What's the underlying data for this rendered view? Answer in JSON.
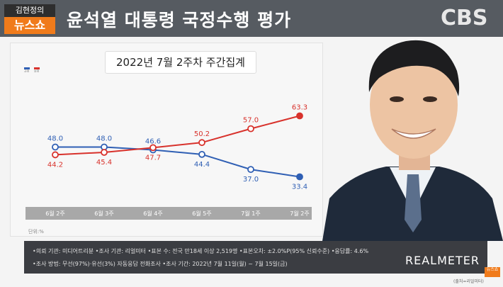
{
  "header": {
    "show_logo_top": "김현정의",
    "show_logo_bottom": "뉴스쇼",
    "title": "윤석열 대통령 국정수행 평가",
    "broadcaster": "CBS"
  },
  "subtitle": "2022년 7월 2주차 주간집계",
  "colors": {
    "positive": "#2f5fb4",
    "negative": "#d8322c",
    "axis_band": "#a8a8a8"
  },
  "chart_data": {
    "type": "line",
    "categories": [
      "6월 2주",
      "6월 3주",
      "6월 4주",
      "6월 5주",
      "7월 1주",
      "7월 2주"
    ],
    "series": [
      {
        "name": "긍정",
        "color": "#2f5fb4",
        "values": [
          48.0,
          48.0,
          46.6,
          44.4,
          37.0,
          33.4
        ],
        "labels": [
          "48.0",
          "48.0",
          "46.6",
          "44.4",
          "37.0",
          "33.4"
        ]
      },
      {
        "name": "부정",
        "color": "#d8322c",
        "values": [
          44.2,
          45.4,
          47.7,
          50.2,
          57.0,
          63.3
        ],
        "labels": [
          "44.2",
          "45.4",
          "47.7",
          "50.2",
          "57.0",
          "63.3"
        ]
      }
    ],
    "ylim": [
      28,
      68
    ],
    "grid": false,
    "unit_note": "단위:%"
  },
  "footer": {
    "line1": "•의뢰 기관: 미디어트리뷴 •조사 기관: 리얼미터 •표본 수: 전국 만18세 이상 2,519명 •표본오차: ±2.0%P(95% 신뢰수준) •응답률: 4.6%",
    "line2": "•조사 방법: 무선(97%)·유선(3%) 자동응답 전화조사 •조사 기간: 2022년 7월 11일(월) ~ 7월 15일(금)",
    "brand": "REALMETER"
  },
  "corner_logo": "뉴스쇼",
  "source": "(출처=리얼미터)"
}
